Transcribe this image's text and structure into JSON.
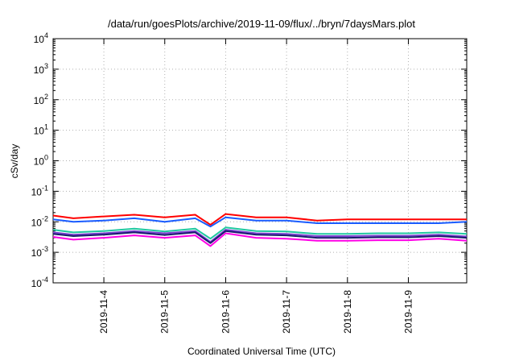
{
  "chart_data": {
    "type": "line",
    "title": "/data/run/goesPlots/archive/2019-11-09/flux/../bryn/7daysMars.plot",
    "xlabel": "Coordinated Universal Time (UTC)",
    "ylabel": "cSv/day",
    "yscale": "log",
    "ylim": [
      0.0001,
      10000
    ],
    "xlim": [
      "2019-11-03 04:00",
      "2019-11-09 23:00"
    ],
    "yticks": [
      {
        "base": "10",
        "exp": "-4"
      },
      {
        "base": "10",
        "exp": "-3"
      },
      {
        "base": "10",
        "exp": "-2"
      },
      {
        "base": "10",
        "exp": "-1"
      },
      {
        "base": "10",
        "exp": "0"
      },
      {
        "base": "10",
        "exp": "1"
      },
      {
        "base": "10",
        "exp": "2"
      },
      {
        "base": "10",
        "exp": "3"
      },
      {
        "base": "10",
        "exp": "4"
      }
    ],
    "xticks": [
      "2019-11-4",
      "2019-11-5",
      "2019-11-6",
      "2019-11-7",
      "2019-11-8",
      "2019-11-9"
    ],
    "grid": true,
    "x": [
      "2019-11-03 04:00",
      "2019-11-03 12:00",
      "2019-11-04 00:00",
      "2019-11-04 12:00",
      "2019-11-05 00:00",
      "2019-11-05 12:00",
      "2019-11-05 18:00",
      "2019-11-06 00:00",
      "2019-11-06 12:00",
      "2019-11-07 00:00",
      "2019-11-07 12:00",
      "2019-11-08 00:00",
      "2019-11-08 12:00",
      "2019-11-09 00:00",
      "2019-11-09 12:00",
      "2019-11-09 23:00"
    ],
    "series": [
      {
        "color": "#ff0000",
        "values": [
          0.016,
          0.013,
          0.015,
          0.017,
          0.014,
          0.017,
          0.008,
          0.018,
          0.014,
          0.014,
          0.011,
          0.012,
          0.012,
          0.012,
          0.012,
          0.012
        ]
      },
      {
        "color": "#1a5cff",
        "values": [
          0.012,
          0.01,
          0.011,
          0.013,
          0.01,
          0.013,
          0.007,
          0.014,
          0.011,
          0.011,
          0.009,
          0.009,
          0.009,
          0.009,
          0.009,
          0.01
        ]
      },
      {
        "color": "#20c8a0",
        "values": [
          0.0055,
          0.0045,
          0.005,
          0.006,
          0.0048,
          0.006,
          0.0028,
          0.0065,
          0.005,
          0.0048,
          0.004,
          0.004,
          0.0042,
          0.0042,
          0.0045,
          0.004
        ]
      },
      {
        "color": "#7a3fd0",
        "values": [
          0.0045,
          0.0038,
          0.0042,
          0.005,
          0.0042,
          0.005,
          0.0022,
          0.0055,
          0.0042,
          0.004,
          0.0034,
          0.0034,
          0.0035,
          0.0035,
          0.0038,
          0.0033
        ]
      },
      {
        "color": "#1a1a6e",
        "values": [
          0.004,
          0.0034,
          0.0038,
          0.0045,
          0.0037,
          0.0045,
          0.002,
          0.005,
          0.0038,
          0.0036,
          0.003,
          0.003,
          0.0031,
          0.0031,
          0.0034,
          0.003
        ]
      },
      {
        "color": "#ff00e6",
        "values": [
          0.0032,
          0.0026,
          0.003,
          0.0036,
          0.003,
          0.0036,
          0.0016,
          0.0042,
          0.003,
          0.0028,
          0.0024,
          0.0024,
          0.0025,
          0.0025,
          0.0028,
          0.0024
        ]
      }
    ]
  }
}
